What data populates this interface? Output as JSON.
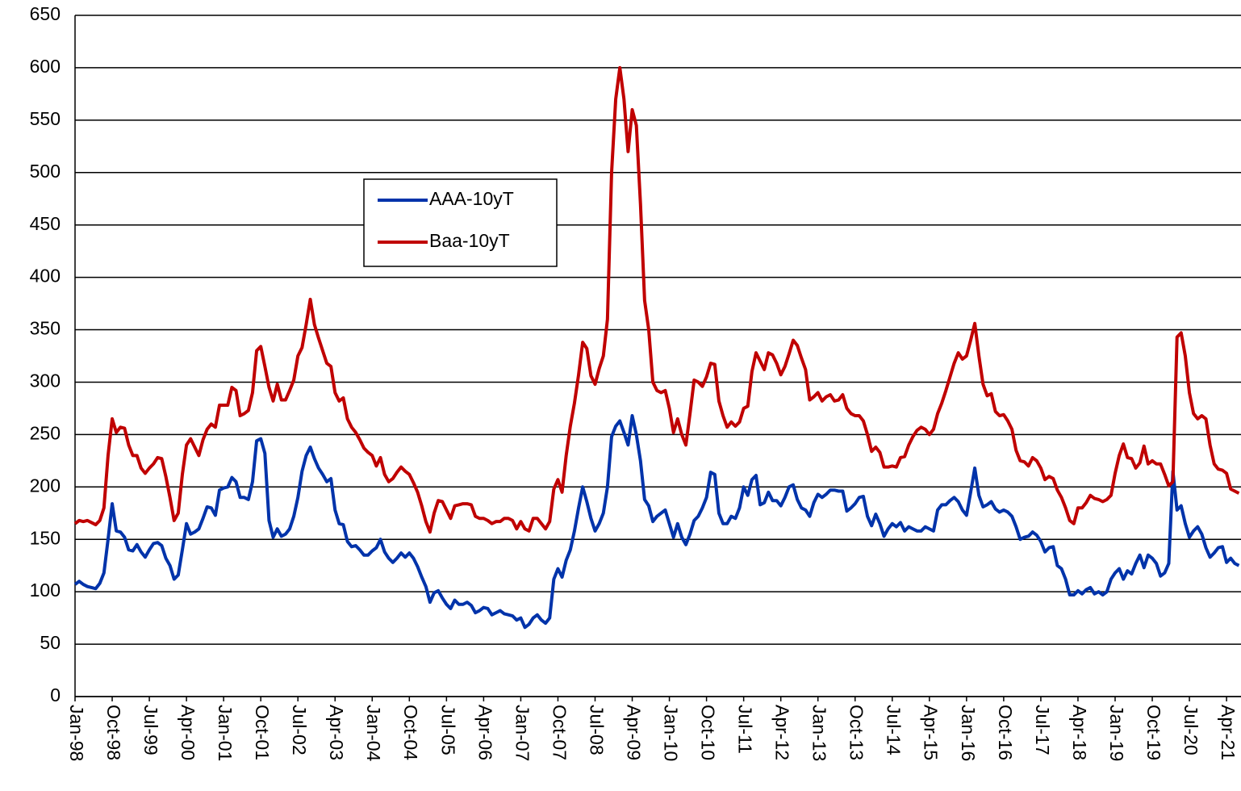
{
  "chart_data": {
    "type": "line",
    "categories": [
      "Jan-98",
      null,
      null,
      null,
      null,
      null,
      null,
      null,
      null,
      "Oct-98",
      null,
      null,
      null,
      null,
      null,
      null,
      null,
      null,
      "Jul-99",
      null,
      null,
      null,
      null,
      null,
      null,
      null,
      null,
      "Apr-00",
      null,
      null,
      null,
      null,
      null,
      null,
      null,
      null,
      "Jan-01",
      null,
      null,
      null,
      null,
      null,
      null,
      null,
      null,
      "Oct-01",
      null,
      null,
      null,
      null,
      null,
      null,
      null,
      null,
      "Jul-02",
      null,
      null,
      null,
      null,
      null,
      null,
      null,
      null,
      "Apr-03",
      null,
      null,
      null,
      null,
      null,
      null,
      null,
      null,
      "Jan-04",
      null,
      null,
      null,
      null,
      null,
      null,
      null,
      null,
      "Oct-04",
      null,
      null,
      null,
      null,
      null,
      null,
      null,
      null,
      "Jul-05",
      null,
      null,
      null,
      null,
      null,
      null,
      null,
      null,
      "Apr-06",
      null,
      null,
      null,
      null,
      null,
      null,
      null,
      null,
      "Jan-07",
      null,
      null,
      null,
      null,
      null,
      null,
      null,
      null,
      "Oct-07",
      null,
      null,
      null,
      null,
      null,
      null,
      null,
      null,
      "Jul-08",
      null,
      null,
      null,
      null,
      null,
      null,
      null,
      null,
      "Apr-09",
      null,
      null,
      null,
      null,
      null,
      null,
      null,
      null,
      "Jan-10",
      null,
      null,
      null,
      null,
      null,
      null,
      null,
      null,
      "Oct-10",
      null,
      null,
      null,
      null,
      null,
      null,
      null,
      null,
      "Jul-11",
      null,
      null,
      null,
      null,
      null,
      null,
      null,
      null,
      "Apr-12",
      null,
      null,
      null,
      null,
      null,
      null,
      null,
      null,
      "Jan-13",
      null,
      null,
      null,
      null,
      null,
      null,
      null,
      null,
      "Oct-13",
      null,
      null,
      null,
      null,
      null,
      null,
      null,
      null,
      "Jul-14",
      null,
      null,
      null,
      null,
      null,
      null,
      null,
      null,
      "Apr-15",
      null,
      null,
      null,
      null,
      null,
      null,
      null,
      null,
      "Jan-16",
      null,
      null,
      null,
      null,
      null,
      null,
      null,
      null,
      "Oct-16",
      null,
      null,
      null,
      null,
      null,
      null,
      null,
      null,
      "Jul-17",
      null,
      null,
      null,
      null,
      null,
      null,
      null,
      null,
      "Apr-18",
      null,
      null,
      null,
      null,
      null,
      null,
      null,
      null,
      "Jan-19",
      null,
      null,
      null,
      null,
      null,
      null,
      null,
      null,
      "Oct-19",
      null,
      null,
      null,
      null,
      null,
      null,
      null,
      null,
      "Jul-20",
      null,
      null,
      null,
      null,
      null,
      null,
      null,
      null,
      "Apr-21",
      null,
      null,
      null
    ],
    "series": [
      {
        "name": "AAA-10yT",
        "color": "#0033aa",
        "values": [
          107,
          110,
          107,
          105,
          104,
          103,
          108,
          118,
          150,
          184,
          158,
          157,
          152,
          140,
          139,
          145,
          138,
          133,
          140,
          146,
          147,
          144,
          132,
          125,
          112,
          116,
          140,
          165,
          155,
          157,
          160,
          170,
          181,
          180,
          173,
          197,
          199,
          200,
          209,
          205,
          190,
          190,
          188,
          205,
          244,
          246,
          232,
          168,
          152,
          160,
          153,
          155,
          160,
          172,
          190,
          215,
          230,
          238,
          227,
          218,
          212,
          205,
          208,
          178,
          165,
          164,
          148,
          143,
          144,
          140,
          135,
          135,
          139,
          142,
          150,
          138,
          132,
          128,
          132,
          137,
          133,
          137,
          132,
          124,
          114,
          105,
          90,
          99,
          101,
          94,
          88,
          84,
          92,
          88,
          88,
          90,
          87,
          80,
          82,
          85,
          84,
          78,
          80,
          82,
          79,
          78,
          77,
          73,
          75,
          66,
          69,
          75,
          78,
          73,
          70,
          75,
          112,
          122,
          114,
          130,
          140,
          158,
          180,
          200,
          186,
          170,
          158,
          165,
          175,
          200,
          248,
          258,
          263,
          252,
          240,
          268,
          250,
          225,
          188,
          182,
          167,
          172,
          175,
          178,
          165,
          152,
          165,
          152,
          145,
          155,
          168,
          172,
          180,
          190,
          214,
          212,
          175,
          165,
          165,
          172,
          170,
          180,
          200,
          192,
          207,
          211,
          183,
          185,
          195,
          187,
          187,
          182,
          190,
          200,
          202,
          188,
          180,
          178,
          172,
          185,
          193,
          190,
          193,
          197,
          197,
          196,
          196,
          177,
          180,
          184,
          190,
          191,
          172,
          163,
          174,
          165,
          153,
          160,
          165,
          162,
          166,
          158,
          162,
          160,
          158,
          158,
          162,
          160,
          158,
          178,
          183,
          183,
          187,
          190,
          186,
          178,
          173,
          195,
          218,
          192,
          181,
          183,
          186,
          179,
          176,
          178,
          176,
          172,
          162,
          150,
          152,
          153,
          157,
          154,
          148,
          138,
          142,
          143,
          125,
          122,
          112,
          97,
          97,
          101,
          98,
          102,
          104,
          98,
          100,
          97,
          100,
          112,
          118,
          122,
          112,
          120,
          117,
          127,
          135,
          123,
          135,
          132,
          127,
          115,
          118,
          127,
          215,
          178,
          182,
          165,
          152,
          158,
          162,
          155,
          142,
          133,
          137,
          142,
          143,
          128,
          132,
          127,
          125
        ]
      },
      {
        "name": "Baa-10yT",
        "color": "#c00000",
        "values": [
          165,
          168,
          167,
          168,
          166,
          164,
          168,
          180,
          230,
          265,
          252,
          257,
          256,
          240,
          230,
          230,
          218,
          213,
          218,
          222,
          228,
          227,
          210,
          190,
          168,
          175,
          212,
          240,
          246,
          238,
          230,
          245,
          255,
          260,
          257,
          278,
          278,
          278,
          295,
          292,
          268,
          270,
          273,
          290,
          330,
          334,
          315,
          295,
          282,
          298,
          283,
          283,
          292,
          302,
          325,
          333,
          355,
          379,
          355,
          342,
          330,
          318,
          315,
          290,
          282,
          285,
          265,
          257,
          252,
          245,
          237,
          233,
          230,
          220,
          228,
          212,
          205,
          208,
          214,
          219,
          215,
          212,
          204,
          195,
          182,
          167,
          157,
          175,
          187,
          186,
          178,
          170,
          182,
          183,
          184,
          184,
          183,
          172,
          170,
          170,
          168,
          165,
          167,
          167,
          170,
          170,
          168,
          160,
          167,
          160,
          158,
          170,
          170,
          165,
          160,
          167,
          198,
          207,
          195,
          230,
          258,
          280,
          307,
          338,
          332,
          306,
          298,
          313,
          325,
          360,
          500,
          570,
          600,
          570,
          520,
          560,
          545,
          470,
          378,
          350,
          300,
          292,
          290,
          292,
          275,
          252,
          265,
          250,
          240,
          270,
          302,
          300,
          296,
          305,
          318,
          317,
          282,
          268,
          257,
          262,
          258,
          262,
          275,
          277,
          310,
          328,
          320,
          312,
          328,
          326,
          318,
          307,
          315,
          327,
          340,
          335,
          323,
          312,
          283,
          286,
          290,
          282,
          286,
          288,
          282,
          283,
          288,
          275,
          270,
          268,
          268,
          263,
          250,
          234,
          238,
          233,
          219,
          219,
          220,
          219,
          228,
          229,
          240,
          248,
          254,
          257,
          255,
          250,
          255,
          270,
          280,
          292,
          305,
          318,
          328,
          322,
          325,
          340,
          356,
          325,
          298,
          287,
          289,
          272,
          268,
          269,
          263,
          255,
          235,
          225,
          224,
          220,
          228,
          225,
          218,
          207,
          210,
          208,
          197,
          190,
          180,
          168,
          165,
          180,
          180,
          185,
          192,
          189,
          188,
          186,
          188,
          192,
          213,
          230,
          241,
          228,
          227,
          218,
          223,
          239,
          222,
          225,
          222,
          222,
          212,
          201,
          205,
          343,
          347,
          325,
          290,
          270,
          265,
          268,
          265,
          240,
          222,
          217,
          216,
          213,
          198,
          196,
          194
        ]
      }
    ],
    "ylim": [
      0,
      650
    ],
    "yticks": [
      0,
      50,
      100,
      150,
      200,
      250,
      300,
      350,
      400,
      450,
      500,
      550,
      600,
      650
    ],
    "grid": true
  }
}
